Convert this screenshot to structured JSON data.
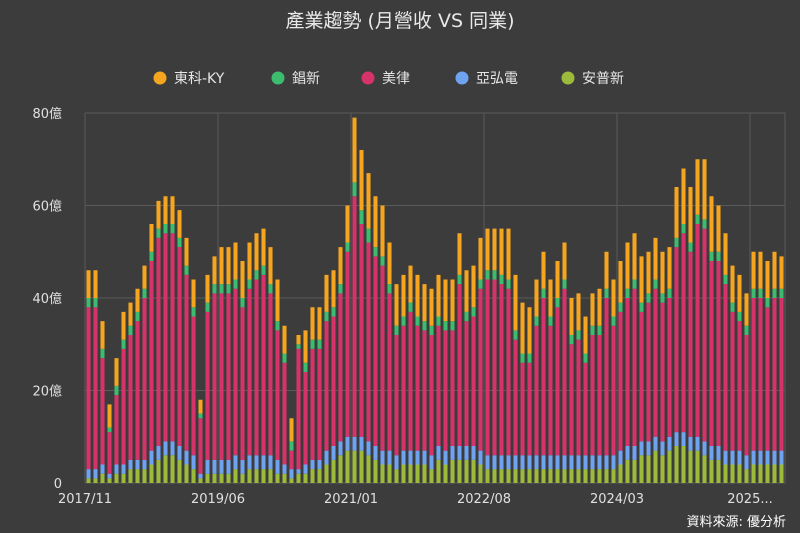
{
  "chart_data": {
    "type": "bar",
    "stacked": true,
    "title": "產業趨勢 (月營收 VS 同業)",
    "source": "資料來源: 優分析",
    "legend_position": "top",
    "grid": true,
    "ylim": [
      0,
      80
    ],
    "yticks": [
      {
        "value": 0,
        "label": "0"
      },
      {
        "value": 20,
        "label": "20億"
      },
      {
        "value": 40,
        "label": "40億"
      },
      {
        "value": 60,
        "label": "60億"
      },
      {
        "value": 80,
        "label": "80億"
      }
    ],
    "xticks": [
      {
        "index": 0,
        "label": "2017/11"
      },
      {
        "index": 19,
        "label": "2019/06"
      },
      {
        "index": 38,
        "label": "2021/01"
      },
      {
        "index": 57,
        "label": "2022/08"
      },
      {
        "index": 76,
        "label": "2024/03"
      },
      {
        "index": 95,
        "label": "2025..."
      }
    ],
    "stack_order": [
      "安普新",
      "亞弘電",
      "美律",
      "錩新",
      "東科-KY"
    ],
    "series": [
      {
        "name": "東科-KY",
        "color": "#f5a51f",
        "values": [
          6,
          6,
          6,
          5,
          6,
          6,
          5,
          5,
          5,
          6,
          6,
          6,
          6,
          6,
          6,
          6,
          3,
          6,
          6,
          8,
          8,
          8,
          8,
          8,
          8,
          8,
          8,
          9,
          6,
          5,
          2,
          7,
          7,
          7,
          8,
          8,
          8,
          8,
          14,
          13,
          12,
          11,
          11,
          9,
          9,
          9,
          8,
          9,
          8,
          8,
          9,
          9,
          9,
          9,
          9,
          9,
          9,
          9,
          9,
          10,
          11,
          12,
          11,
          10,
          8,
          8,
          8,
          8,
          8,
          8,
          8,
          8,
          7,
          8,
          8,
          8,
          9,
          10,
          10,
          10,
          9,
          9,
          9,
          9,
          11,
          12,
          12,
          12,
          13,
          12,
          10,
          9,
          8,
          8,
          7,
          8,
          8,
          8,
          8,
          7
        ]
      },
      {
        "name": "錩新",
        "color": "#3dbb6e",
        "values": [
          2,
          2,
          2,
          1,
          2,
          2,
          2,
          2,
          2,
          2,
          2,
          2,
          2,
          2,
          2,
          2,
          1,
          2,
          2,
          2,
          2,
          2,
          2,
          2,
          2,
          2,
          2,
          2,
          2,
          2,
          1,
          2,
          2,
          2,
          2,
          2,
          2,
          2,
          3,
          3,
          3,
          2,
          2,
          2,
          2,
          2,
          2,
          2,
          2,
          2,
          2,
          2,
          2,
          2,
          2,
          2,
          2,
          2,
          2,
          2,
          2,
          2,
          2,
          2,
          2,
          2,
          2,
          2,
          2,
          2,
          2,
          2,
          2,
          2,
          2,
          2,
          2,
          2,
          2,
          2,
          2,
          2,
          2,
          2,
          2,
          2,
          2,
          2,
          2,
          2,
          2,
          2,
          2,
          2,
          2,
          2,
          2,
          2,
          2,
          2
        ]
      },
      {
        "name": "美律",
        "color": "#d7336b",
        "values": [
          35,
          35,
          23,
          9,
          15,
          25,
          27,
          30,
          35,
          41,
          45,
          45,
          45,
          43,
          38,
          30,
          12,
          32,
          36,
          36,
          36,
          36,
          33,
          36,
          38,
          39,
          35,
          28,
          22,
          4,
          26,
          20,
          24,
          24,
          28,
          28,
          32,
          40,
          52,
          46,
          43,
          41,
          40,
          34,
          26,
          27,
          30,
          27,
          26,
          26,
          26,
          26,
          25,
          35,
          27,
          28,
          35,
          38,
          38,
          37,
          36,
          25,
          20,
          20,
          28,
          34,
          28,
          32,
          36,
          24,
          25,
          20,
          26,
          26,
          34,
          28,
          30,
          32,
          34,
          28,
          30,
          32,
          30,
          30,
          40,
          43,
          40,
          46,
          46,
          40,
          40,
          36,
          30,
          28,
          26,
          33,
          33,
          31,
          33,
          33
        ]
      },
      {
        "name": "亞弘電",
        "color": "#6fa3f0",
        "values": [
          2,
          2,
          2,
          1,
          2,
          2,
          2,
          2,
          2,
          3,
          3,
          3,
          3,
          3,
          3,
          3,
          1,
          3,
          3,
          3,
          3,
          3,
          3,
          3,
          3,
          3,
          3,
          3,
          2,
          2,
          1,
          2,
          2,
          2,
          3,
          3,
          3,
          3,
          3,
          3,
          3,
          3,
          3,
          3,
          3,
          3,
          3,
          3,
          3,
          3,
          3,
          3,
          3,
          3,
          3,
          3,
          3,
          3,
          3,
          3,
          3,
          3,
          3,
          3,
          3,
          3,
          3,
          3,
          3,
          3,
          3,
          3,
          3,
          3,
          3,
          3,
          3,
          3,
          3,
          3,
          3,
          3,
          3,
          3,
          3,
          3,
          3,
          3,
          3,
          3,
          3,
          3,
          3,
          3,
          3,
          3,
          3,
          3,
          3,
          3
        ]
      },
      {
        "name": "安普新",
        "color": "#9dbb3b",
        "values": [
          1,
          1,
          2,
          1,
          2,
          2,
          3,
          3,
          3,
          4,
          5,
          6,
          6,
          5,
          4,
          3,
          1,
          2,
          2,
          2,
          2,
          3,
          2,
          3,
          3,
          3,
          3,
          2,
          2,
          1,
          2,
          2,
          3,
          3,
          4,
          5,
          6,
          7,
          7,
          7,
          6,
          5,
          4,
          4,
          3,
          4,
          4,
          4,
          4,
          3,
          5,
          4,
          5,
          5,
          5,
          5,
          4,
          3,
          3,
          3,
          3,
          3,
          3,
          3,
          3,
          3,
          3,
          3,
          3,
          3,
          3,
          3,
          3,
          3,
          3,
          3,
          4,
          5,
          5,
          6,
          6,
          7,
          6,
          7,
          8,
          8,
          7,
          7,
          6,
          5,
          5,
          4,
          4,
          4,
          3,
          4,
          4,
          4,
          4,
          4
        ]
      }
    ]
  }
}
